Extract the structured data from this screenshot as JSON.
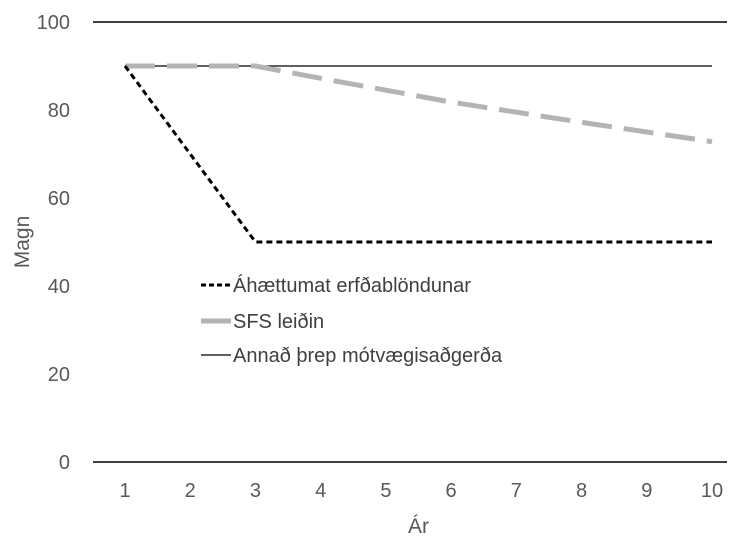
{
  "chart_data": {
    "type": "line",
    "title": "",
    "xlabel": "Ár",
    "ylabel": "Magn",
    "x": [
      1,
      2,
      3,
      4,
      5,
      6,
      7,
      8,
      9,
      10
    ],
    "xticks": [
      "1",
      "2",
      "3",
      "4",
      "5",
      "6",
      "7",
      "8",
      "9",
      "10"
    ],
    "ylim": [
      0,
      100
    ],
    "yticks": [
      "0",
      "20",
      "40",
      "60",
      "80",
      "100"
    ],
    "grid": false,
    "legend_position": "center",
    "series": [
      {
        "name": "Áhættumat erfðablöndunar",
        "values": [
          90,
          70,
          50,
          50,
          50,
          50,
          50,
          50,
          50,
          50
        ],
        "color": "#000000",
        "style": "dotted"
      },
      {
        "name": "SFS leiðin",
        "values": [
          90,
          90,
          90,
          87.2,
          84.5,
          81.8,
          79.5,
          77.2,
          75,
          72.8
        ],
        "color": "#b4b4b4",
        "style": "dashed"
      },
      {
        "name": "Annað þrep mótvægisaðgerða",
        "values": [
          90,
          90,
          90,
          90,
          90,
          90,
          90,
          90,
          90,
          90
        ],
        "color": "#000000",
        "style": "solid"
      }
    ]
  }
}
